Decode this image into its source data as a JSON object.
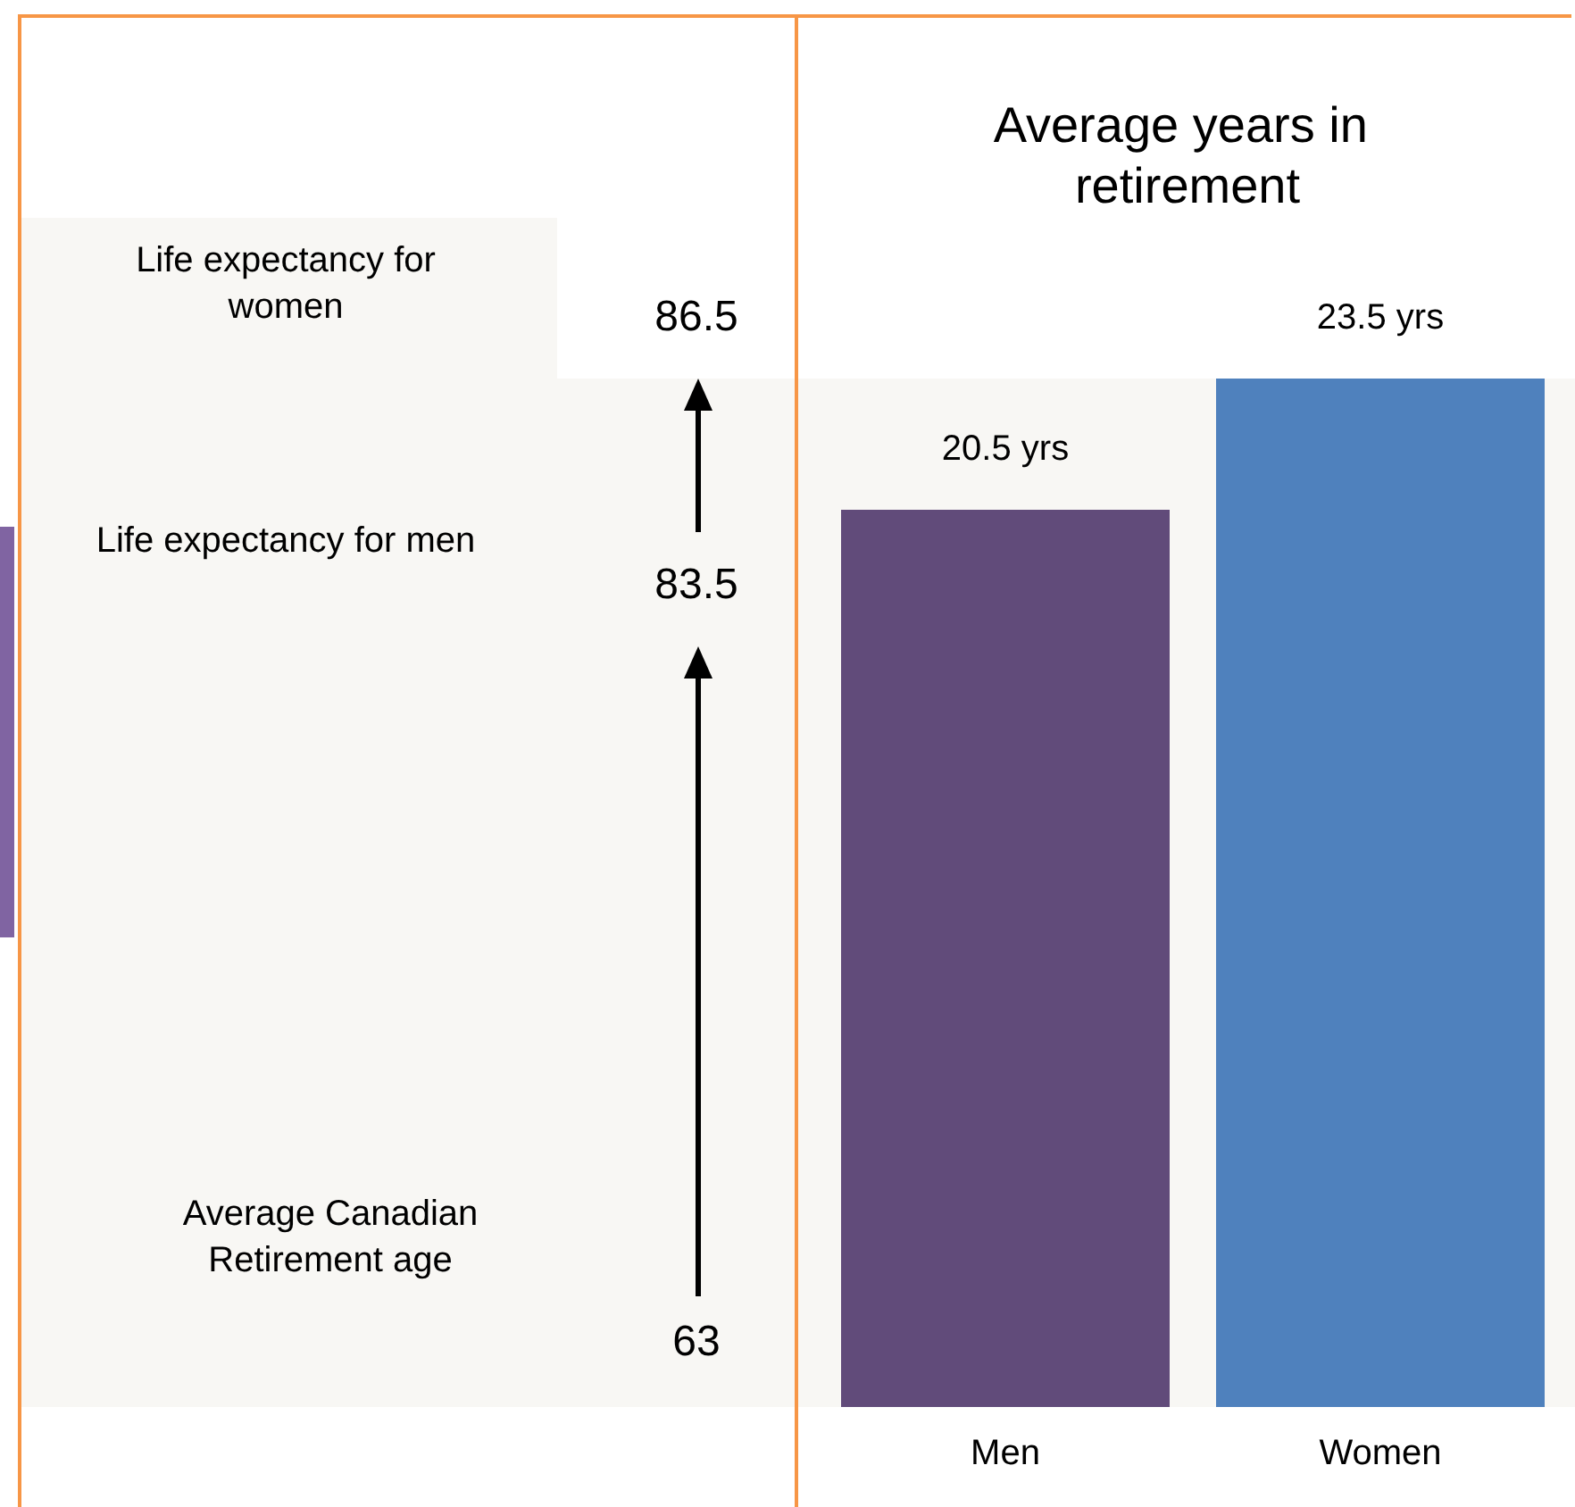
{
  "chart_data": {
    "type": "bar",
    "title": "Average years in retirement",
    "categories": [
      "Men",
      "Women"
    ],
    "values": [
      20.5,
      23.5
    ],
    "colors": [
      "#614b7a",
      "#4f81bd"
    ],
    "value_labels": [
      "20.5 yrs",
      "23.5 yrs"
    ],
    "annotations": [
      "Life expectancy for women",
      "86.5",
      "Life expectancy for men",
      "83.5",
      "Average Canadian Retirement age",
      "63"
    ]
  }
}
